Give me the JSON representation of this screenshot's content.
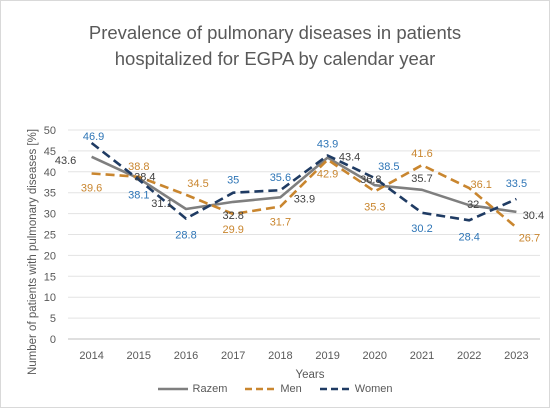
{
  "chart_data": {
    "type": "line",
    "title_line1": "Prevalence of pulmonary diseases in patients",
    "title_line2": "hospitalized for EGPA by calendar year",
    "xlabel": "Years",
    "ylabel": "Number of patients with pulmonary diseases [%]",
    "ylim": [
      0,
      50
    ],
    "yticks": [
      0,
      5,
      10,
      15,
      20,
      25,
      30,
      35,
      40,
      45,
      50
    ],
    "categories": [
      "2014",
      "2015",
      "2016",
      "2017",
      "2018",
      "2019",
      "2020",
      "2021",
      "2022",
      "2023"
    ],
    "grid": true,
    "legend_position": "bottom",
    "series": [
      {
        "name": "Razem",
        "color": "#7f7f7f",
        "dash": "solid",
        "values": [
          43.6,
          38.4,
          31.1,
          32.8,
          33.9,
          43.4,
          36.8,
          35.7,
          32,
          30.4
        ],
        "labels": [
          "43.6",
          "38.4",
          "31.1",
          "32.8",
          "33.9",
          "43.4",
          "36.8",
          "35.7",
          "32",
          "30.4"
        ],
        "label_color": "#404040"
      },
      {
        "name": "Men",
        "color": "#c9862f",
        "dash": "dashed",
        "values": [
          39.6,
          38.8,
          34.5,
          29.9,
          31.7,
          42.9,
          35.3,
          41.6,
          36.1,
          26.7
        ],
        "labels": [
          "39.6",
          "38.8",
          "34.5",
          "29.9",
          "31.7",
          "42.9",
          "35.3",
          "41.6",
          "36.1",
          "26.7"
        ],
        "label_color": "#c9862f"
      },
      {
        "name": "Women",
        "color": "#1f3b63",
        "dash": "dashed",
        "values": [
          46.9,
          38.1,
          28.8,
          35,
          35.6,
          43.9,
          38.5,
          30.2,
          28.4,
          33.5
        ],
        "labels": [
          "46.9",
          "38.1",
          "28.8",
          "35",
          "35.6",
          "43.9",
          "38.5",
          "30.2",
          "28.4",
          "33.5"
        ],
        "label_color": "#2e75b6"
      }
    ]
  }
}
